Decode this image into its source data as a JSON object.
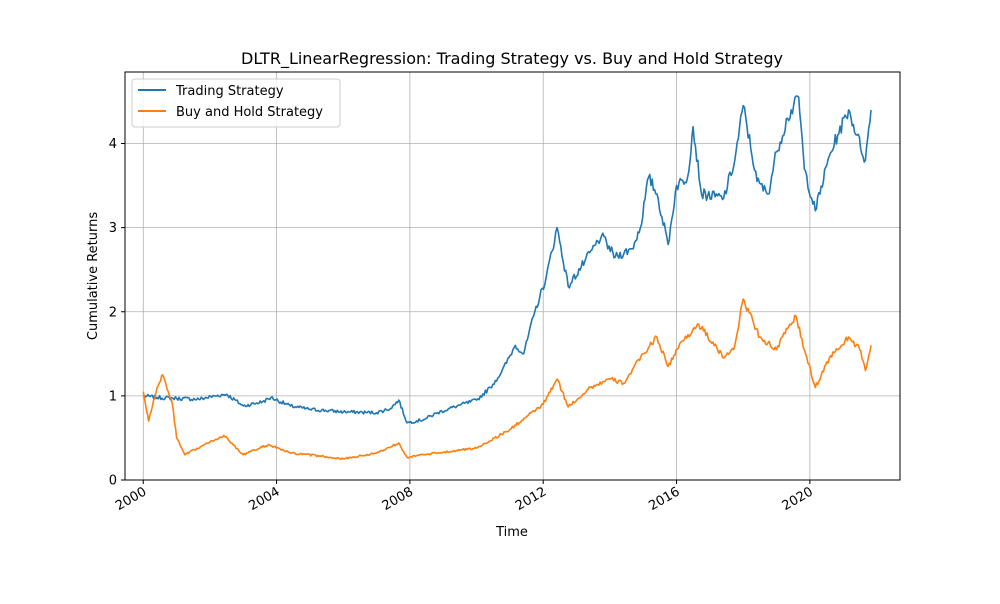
{
  "chart_data": {
    "type": "line",
    "title": "DLTR_LinearRegression: Trading Strategy vs. Buy and Hold Strategy",
    "xlabel": "Time",
    "ylabel": "Cumulative Returns",
    "x_range": [
      "1999-06-15",
      "2022-09-15"
    ],
    "ylim": [
      0,
      4.85
    ],
    "x_ticks": [
      {
        "date": "2000-01-01",
        "label": "2000"
      },
      {
        "date": "2004-01-01",
        "label": "2004"
      },
      {
        "date": "2008-01-01",
        "label": "2008"
      },
      {
        "date": "2012-01-01",
        "label": "2012"
      },
      {
        "date": "2016-01-01",
        "label": "2016"
      },
      {
        "date": "2020-01-01",
        "label": "2020"
      }
    ],
    "y_ticks": [
      0,
      1,
      2,
      3,
      4
    ],
    "grid": true,
    "legend_position": "top-left",
    "series": [
      {
        "name": "Trading Strategy",
        "color": "#1f77b4",
        "points": [
          [
            "2000-01-01",
            1.0
          ],
          [
            "2000-06-01",
            0.98
          ],
          [
            "2001-01-01",
            0.97
          ],
          [
            "2001-09-01",
            0.96
          ],
          [
            "2002-03-01",
            1.0
          ],
          [
            "2002-07-01",
            1.02
          ],
          [
            "2003-01-01",
            0.88
          ],
          [
            "2003-08-01",
            0.93
          ],
          [
            "2003-11-01",
            0.98
          ],
          [
            "2004-06-01",
            0.88
          ],
          [
            "2005-01-01",
            0.84
          ],
          [
            "2006-01-01",
            0.81
          ],
          [
            "2007-01-01",
            0.8
          ],
          [
            "2007-06-01",
            0.85
          ],
          [
            "2007-09-01",
            0.95
          ],
          [
            "2007-12-01",
            0.68
          ],
          [
            "2008-06-01",
            0.72
          ],
          [
            "2008-11-01",
            0.8
          ],
          [
            "2009-06-01",
            0.88
          ],
          [
            "2010-01-01",
            0.95
          ],
          [
            "2010-06-01",
            1.1
          ],
          [
            "2010-10-01",
            1.28
          ],
          [
            "2011-03-01",
            1.6
          ],
          [
            "2011-06-01",
            1.5
          ],
          [
            "2011-10-01",
            2.0
          ],
          [
            "2012-02-01",
            2.4
          ],
          [
            "2012-06-01",
            3.0
          ],
          [
            "2012-10-01",
            2.3
          ],
          [
            "2013-04-01",
            2.6
          ],
          [
            "2013-10-01",
            2.9
          ],
          [
            "2014-03-01",
            2.65
          ],
          [
            "2014-09-01",
            2.75
          ],
          [
            "2014-12-01",
            3.0
          ],
          [
            "2015-03-01",
            3.6
          ],
          [
            "2015-06-01",
            3.4
          ],
          [
            "2015-10-01",
            2.8
          ],
          [
            "2016-01-01",
            3.5
          ],
          [
            "2016-05-01",
            3.6
          ],
          [
            "2016-07-01",
            4.2
          ],
          [
            "2016-10-01",
            3.4
          ],
          [
            "2017-06-01",
            3.35
          ],
          [
            "2017-10-01",
            3.8
          ],
          [
            "2018-01-01",
            4.45
          ],
          [
            "2018-06-01",
            3.55
          ],
          [
            "2018-10-01",
            3.4
          ],
          [
            "2019-01-01",
            3.9
          ],
          [
            "2019-05-01",
            4.3
          ],
          [
            "2019-09-01",
            4.55
          ],
          [
            "2019-11-01",
            3.7
          ],
          [
            "2020-03-01",
            3.2
          ],
          [
            "2020-08-01",
            3.85
          ],
          [
            "2020-11-01",
            4.1
          ],
          [
            "2021-03-01",
            4.4
          ],
          [
            "2021-06-01",
            4.1
          ],
          [
            "2021-09-01",
            3.8
          ],
          [
            "2021-11-01",
            4.4
          ]
        ]
      },
      {
        "name": "Buy and Hold Strategy",
        "color": "#ff7f0e",
        "points": [
          [
            "2000-01-01",
            1.05
          ],
          [
            "2000-03-01",
            0.7
          ],
          [
            "2000-06-01",
            1.1
          ],
          [
            "2000-08-01",
            1.25
          ],
          [
            "2000-10-01",
            1.05
          ],
          [
            "2000-11-15",
            0.9
          ],
          [
            "2001-01-01",
            0.5
          ],
          [
            "2001-04-01",
            0.3
          ],
          [
            "2002-01-01",
            0.45
          ],
          [
            "2002-06-01",
            0.53
          ],
          [
            "2003-01-01",
            0.3
          ],
          [
            "2003-10-01",
            0.42
          ],
          [
            "2004-06-01",
            0.32
          ],
          [
            "2005-06-01",
            0.28
          ],
          [
            "2006-01-01",
            0.25
          ],
          [
            "2007-01-01",
            0.32
          ],
          [
            "2007-09-01",
            0.44
          ],
          [
            "2007-12-01",
            0.27
          ],
          [
            "2008-06-01",
            0.3
          ],
          [
            "2009-01-01",
            0.33
          ],
          [
            "2010-01-01",
            0.38
          ],
          [
            "2011-01-01",
            0.6
          ],
          [
            "2012-01-01",
            0.9
          ],
          [
            "2012-06-01",
            1.2
          ],
          [
            "2012-10-01",
            0.87
          ],
          [
            "2013-06-01",
            1.1
          ],
          [
            "2014-01-01",
            1.2
          ],
          [
            "2014-06-01",
            1.15
          ],
          [
            "2015-01-01",
            1.5
          ],
          [
            "2015-06-01",
            1.7
          ],
          [
            "2015-10-01",
            1.35
          ],
          [
            "2016-03-01",
            1.65
          ],
          [
            "2016-09-01",
            1.85
          ],
          [
            "2017-06-01",
            1.45
          ],
          [
            "2017-10-01",
            1.6
          ],
          [
            "2018-01-01",
            2.15
          ],
          [
            "2018-07-01",
            1.7
          ],
          [
            "2019-01-01",
            1.55
          ],
          [
            "2019-05-01",
            1.8
          ],
          [
            "2019-08-01",
            1.95
          ],
          [
            "2019-11-01",
            1.55
          ],
          [
            "2020-03-01",
            1.1
          ],
          [
            "2020-08-01",
            1.45
          ],
          [
            "2020-11-01",
            1.55
          ],
          [
            "2021-03-01",
            1.7
          ],
          [
            "2021-07-01",
            1.55
          ],
          [
            "2021-09-01",
            1.3
          ],
          [
            "2021-11-01",
            1.6
          ]
        ]
      }
    ]
  }
}
